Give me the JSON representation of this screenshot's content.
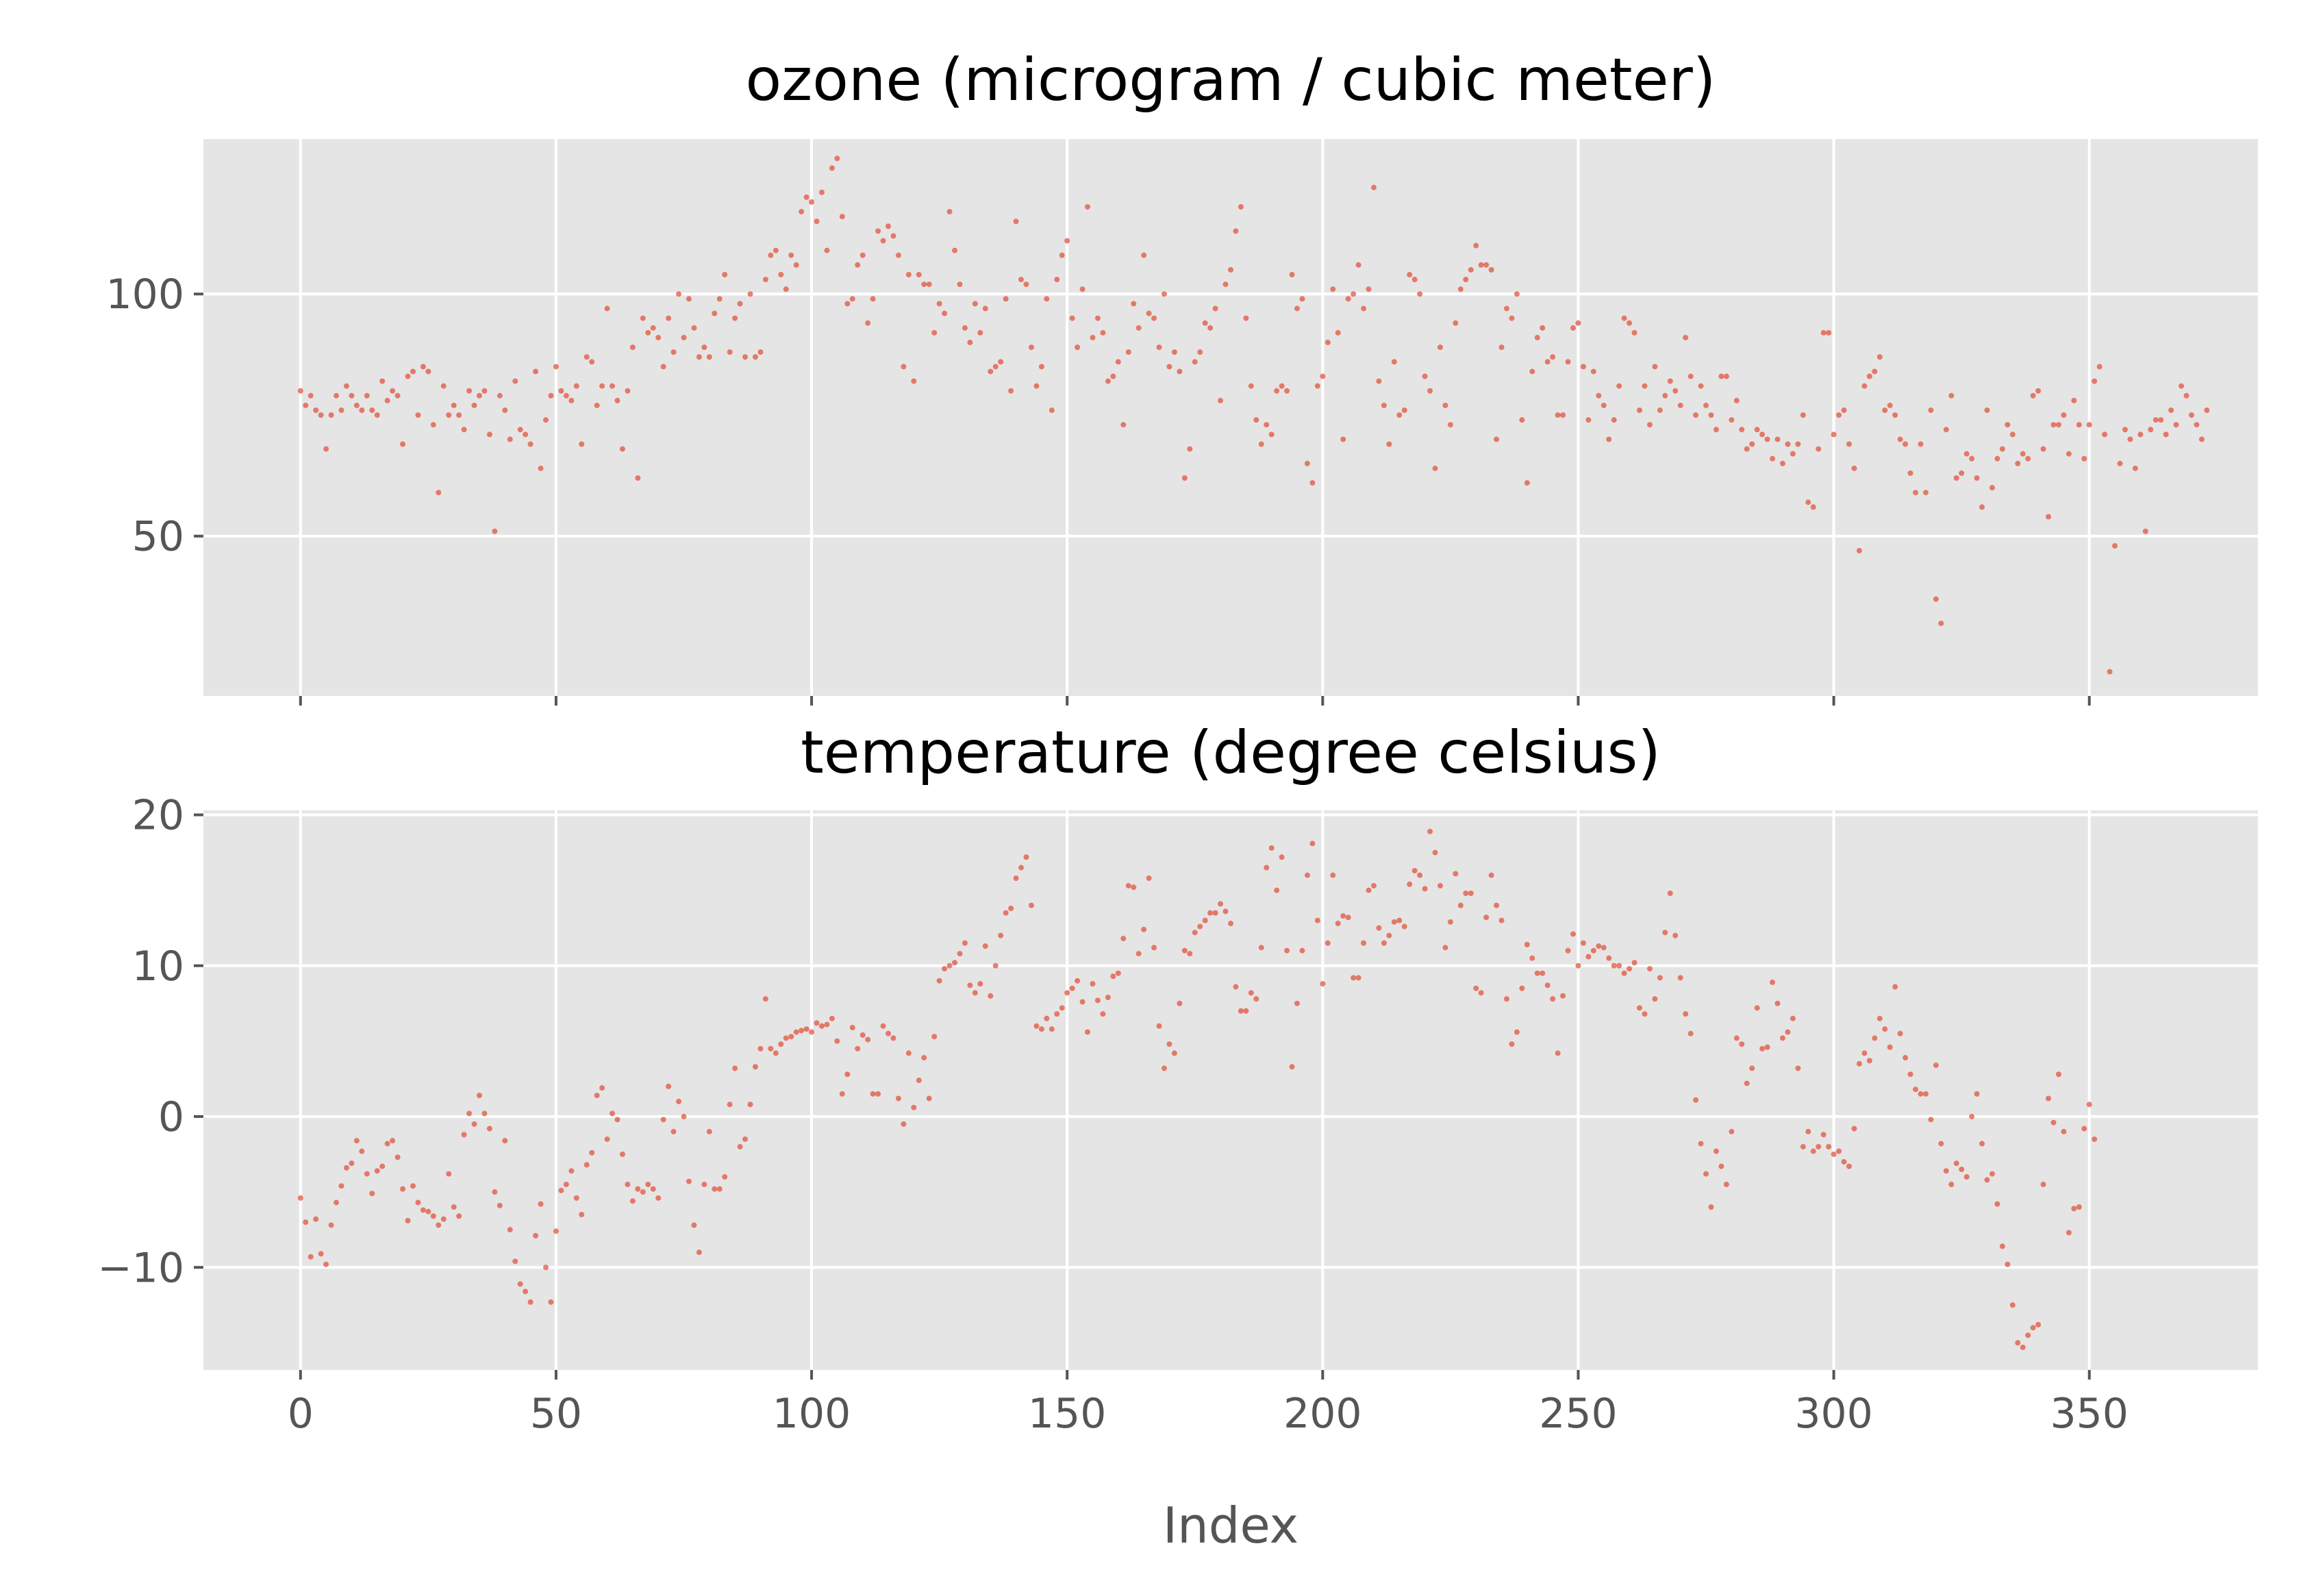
{
  "chart_data": [
    {
      "type": "scatter",
      "title": "ozone (microgram / cubic meter)",
      "xlabel": "",
      "ylabel": "",
      "xlim": [
        -19,
        383
      ],
      "ylim": [
        17,
        132
      ],
      "x_ticks": [
        0,
        50,
        100,
        150,
        200,
        250,
        300,
        350
      ],
      "y_ticks": [
        50,
        100
      ],
      "y_tick_labels": [
        "50",
        "100"
      ],
      "grid": true,
      "color": "#e24a33",
      "values": [
        80,
        77,
        79,
        76,
        75,
        68,
        75,
        79,
        76,
        81,
        79,
        77,
        76,
        79,
        76,
        75,
        82,
        78,
        80,
        79,
        69,
        83,
        84,
        75,
        85,
        84,
        73,
        59,
        81,
        75,
        77,
        75,
        72,
        80,
        77,
        79,
        80,
        71,
        51,
        79,
        76,
        70,
        82,
        72,
        71,
        69,
        84,
        64,
        74,
        79,
        85,
        80,
        79,
        78,
        81,
        69,
        87,
        86,
        77,
        81,
        97,
        81,
        78,
        68,
        80,
        89,
        62,
        95,
        92,
        93,
        91,
        85,
        95,
        88,
        100,
        91,
        99,
        93,
        87,
        89,
        87,
        96,
        99,
        104,
        88,
        95,
        98,
        87,
        100,
        87,
        88,
        103,
        108,
        109,
        104,
        101,
        108,
        106,
        117,
        120,
        119,
        115,
        121,
        109,
        126,
        128,
        116,
        98,
        99,
        106,
        108,
        94,
        99,
        113,
        111,
        114,
        112,
        108,
        85,
        104,
        82,
        104,
        102,
        102,
        92,
        98,
        96,
        117,
        109,
        102,
        93,
        90,
        98,
        92,
        97,
        84,
        85,
        86,
        99,
        80,
        115,
        103,
        102,
        89,
        81,
        85,
        99,
        76,
        103,
        108,
        111,
        95,
        89,
        101,
        118,
        91,
        95,
        92,
        82,
        83,
        86,
        73,
        88,
        98,
        93,
        108,
        96,
        95,
        89,
        100,
        85,
        88,
        84,
        62,
        68,
        86,
        88,
        94,
        93,
        97,
        78,
        102,
        105,
        113,
        118,
        95,
        81,
        74,
        69,
        73,
        71,
        80,
        81,
        80,
        104,
        97,
        99,
        65,
        61,
        81,
        83,
        90,
        101,
        92,
        70,
        99,
        100,
        106,
        97,
        101,
        122,
        82,
        77,
        69,
        86,
        75,
        76,
        104,
        103,
        100,
        83,
        80,
        64,
        89,
        77,
        73,
        94,
        101,
        103,
        105,
        110,
        106,
        106,
        105,
        70,
        89,
        97,
        95,
        100,
        74,
        61,
        84,
        91,
        93,
        86,
        87,
        75,
        75,
        86,
        93,
        94,
        85,
        74,
        84,
        79,
        77,
        70,
        74,
        81,
        95,
        94,
        92,
        76,
        81,
        73,
        85,
        76,
        79,
        82,
        80,
        77,
        91,
        83,
        75,
        81,
        77,
        75,
        72,
        83,
        83,
        74,
        78,
        72,
        68,
        69,
        72,
        71,
        70,
        66,
        70,
        65,
        69,
        67,
        69,
        75,
        57,
        56,
        68,
        92,
        92,
        71,
        75,
        76,
        69,
        64,
        47,
        81,
        83,
        84,
        87,
        76,
        77,
        75,
        70,
        69,
        63,
        59,
        69,
        59,
        76,
        37,
        32,
        72,
        79,
        62,
        63,
        67,
        66,
        62,
        56,
        76,
        60,
        66,
        68,
        73,
        71,
        65,
        67,
        66,
        79,
        80,
        68,
        54,
        73,
        73,
        75,
        67,
        78,
        73,
        66,
        73,
        82,
        85,
        71,
        22,
        48,
        65,
        72,
        70,
        64,
        71,
        51,
        72,
        74,
        74,
        71,
        76,
        73,
        81,
        79,
        75,
        73,
        70,
        76
      ]
    },
    {
      "type": "scatter",
      "title": "temperature (degree celsius)",
      "xlabel": "Index",
      "ylabel": "",
      "xlim": [
        -19,
        383
      ],
      "ylim": [
        -16.8,
        20.3
      ],
      "x_ticks": [
        0,
        50,
        100,
        150,
        200,
        250,
        300,
        350
      ],
      "x_tick_labels": [
        "0",
        "50",
        "100",
        "150",
        "200",
        "250",
        "300",
        "350"
      ],
      "y_ticks": [
        -10,
        0,
        10,
        20
      ],
      "y_tick_labels": [
        "−10",
        "0",
        "10",
        "20"
      ],
      "grid": true,
      "color": "#e24a33",
      "values": [
        -5.4,
        -7.0,
        -9.3,
        -6.8,
        -9.1,
        -9.8,
        -7.2,
        -5.7,
        -4.6,
        -3.4,
        -3.1,
        -1.6,
        -2.3,
        -3.8,
        -5.1,
        -3.6,
        -3.3,
        -1.8,
        -1.6,
        -2.7,
        -4.8,
        -6.9,
        -4.6,
        -5.7,
        -6.2,
        -6.3,
        -6.6,
        -7.2,
        -6.8,
        -3.8,
        -6.0,
        -6.6,
        -1.2,
        0.2,
        -0.5,
        1.4,
        0.2,
        -0.8,
        -5.0,
        -5.9,
        -1.6,
        -7.5,
        -9.6,
        -11.1,
        -11.6,
        -12.3,
        -7.9,
        -5.8,
        -10.0,
        -12.3,
        -7.6,
        -4.9,
        -4.5,
        -3.6,
        -5.4,
        -6.5,
        -3.2,
        -2.4,
        1.4,
        1.9,
        -1.5,
        0.2,
        -0.2,
        -2.5,
        -4.5,
        -5.6,
        -4.8,
        -5.0,
        -4.5,
        -4.8,
        -5.4,
        -0.2,
        2.0,
        -1.0,
        1.0,
        0.0,
        -4.3,
        -7.2,
        -9.0,
        -4.5,
        -1.0,
        -4.8,
        -4.8,
        -4.0,
        0.8,
        3.2,
        -2.0,
        -1.5,
        0.8,
        3.3,
        4.5,
        7.8,
        4.5,
        4.2,
        4.8,
        5.2,
        5.3,
        5.6,
        5.7,
        5.8,
        5.6,
        6.2,
        6.0,
        6.1,
        6.5,
        5.0,
        1.5,
        2.8,
        5.9,
        4.5,
        5.4,
        5.1,
        1.5,
        1.5,
        6.0,
        5.5,
        5.2,
        1.2,
        -0.5,
        4.2,
        0.6,
        2.4,
        3.9,
        1.2,
        5.3,
        9.0,
        9.8,
        10.0,
        10.2,
        10.8,
        11.5,
        8.7,
        8.2,
        8.8,
        11.3,
        8.0,
        10.0,
        12.0,
        13.5,
        13.8,
        15.8,
        16.5,
        17.2,
        14.0,
        6.0,
        5.8,
        6.5,
        5.8,
        6.8,
        7.2,
        8.2,
        8.5,
        9.0,
        7.6,
        5.6,
        8.8,
        7.7,
        6.8,
        7.9,
        9.3,
        9.5,
        11.8,
        15.3,
        15.2,
        10.8,
        12.4,
        15.8,
        11.2,
        6.0,
        3.2,
        4.8,
        4.2,
        7.5,
        11.0,
        10.8,
        12.2,
        12.6,
        13.0,
        13.5,
        13.5,
        14.1,
        13.6,
        12.8,
        8.6,
        7.0,
        7.0,
        8.2,
        7.8,
        11.2,
        16.5,
        17.8,
        15.0,
        17.2,
        11.0,
        3.3,
        7.5,
        11.0,
        16.0,
        18.1,
        13.0,
        8.8,
        11.5,
        16.0,
        12.8,
        13.3,
        13.2,
        9.2,
        9.2,
        11.5,
        15.0,
        15.3,
        12.5,
        11.5,
        12.0,
        12.9,
        13.0,
        12.6,
        15.4,
        16.3,
        16.0,
        15.1,
        18.9,
        17.5,
        15.3,
        11.2,
        12.9,
        16.1,
        14.0,
        14.8,
        14.8,
        8.5,
        8.2,
        13.2,
        16.0,
        14.0,
        13.0,
        7.8,
        4.8,
        5.6,
        8.5,
        11.4,
        10.5,
        9.5,
        9.5,
        8.7,
        7.8,
        4.2,
        8.0,
        11.0,
        12.1,
        10.0,
        11.5,
        10.6,
        11.0,
        11.3,
        11.2,
        10.5,
        10.0,
        10.0,
        9.5,
        9.8,
        10.2,
        7.2,
        6.8,
        9.8,
        7.8,
        9.2,
        12.2,
        14.8,
        12.0,
        9.2,
        6.8,
        5.5,
        1.1,
        -1.8,
        -3.8,
        -6.0,
        -2.3,
        -3.3,
        -4.5,
        -1.0,
        5.2,
        4.8,
        2.2,
        3.2,
        7.2,
        4.5,
        4.6,
        8.9,
        7.5,
        5.2,
        5.6,
        6.5,
        3.2,
        -2.0,
        -1.0,
        -2.3,
        -2.0,
        -1.2,
        -2.0,
        -2.5,
        -2.3,
        -3.0,
        -3.3,
        -0.8,
        3.5,
        4.2,
        3.7,
        5.2,
        6.5,
        5.8,
        4.6,
        8.6,
        5.5,
        3.9,
        2.8,
        1.8,
        1.5,
        1.5,
        -0.2,
        3.4,
        -1.8,
        -3.6,
        -4.5,
        -3.1,
        -3.5,
        -4.0,
        0.0,
        1.5,
        -1.8,
        -4.2,
        -3.8,
        -5.8,
        -8.6,
        -9.8,
        -12.5,
        -15.0,
        -15.3,
        -14.5,
        -14.0,
        -13.8,
        -4.5,
        1.2,
        -0.4,
        2.8,
        -1.0,
        -7.7,
        -6.1,
        -6.0,
        -0.8,
        0.8,
        -1.5
      ]
    }
  ]
}
